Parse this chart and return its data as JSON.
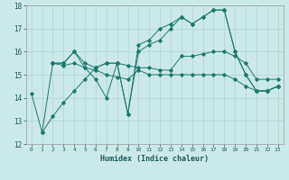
{
  "xlabel": "Humidex (Indice chaleur)",
  "ylabel": "",
  "xlim": [
    -0.5,
    23.5
  ],
  "ylim": [
    12,
    18
  ],
  "yticks": [
    12,
    13,
    14,
    15,
    16,
    17,
    18
  ],
  "xticks": [
    0,
    1,
    2,
    3,
    4,
    5,
    6,
    7,
    8,
    9,
    10,
    11,
    12,
    13,
    14,
    15,
    16,
    17,
    18,
    19,
    20,
    21,
    22,
    23
  ],
  "background_color": "#cce9e9",
  "grid_color": "#aad4d4",
  "line_color": "#1a7a6e",
  "series": [
    {
      "x": [
        0,
        1,
        2,
        3,
        4,
        5,
        6,
        7,
        8,
        9,
        10,
        11,
        12,
        13,
        14,
        15,
        16,
        17,
        18,
        19,
        20,
        21,
        22,
        23
      ],
      "y": [
        14.2,
        12.5,
        15.5,
        15.5,
        16.0,
        15.3,
        14.8,
        14.0,
        15.5,
        13.3,
        16.3,
        16.5,
        17.0,
        17.2,
        17.5,
        17.2,
        17.5,
        17.8,
        17.8,
        16.0,
        15.0,
        14.3,
        14.3,
        14.5
      ]
    },
    {
      "x": [
        2,
        3,
        4,
        5,
        6,
        7,
        8,
        9,
        10,
        11,
        12,
        13,
        14,
        15,
        16,
        17,
        18,
        19,
        20,
        21,
        22,
        23
      ],
      "y": [
        15.5,
        15.5,
        16.0,
        15.5,
        15.3,
        15.5,
        15.5,
        15.4,
        15.3,
        15.3,
        15.2,
        15.2,
        15.8,
        15.8,
        15.9,
        16.0,
        16.0,
        15.8,
        15.5,
        14.8,
        14.8,
        14.8
      ]
    },
    {
      "x": [
        2,
        3,
        4,
        5,
        6,
        7,
        8,
        9,
        10,
        11,
        12,
        13,
        14,
        15,
        16,
        17,
        18,
        19,
        20,
        21,
        22,
        23
      ],
      "y": [
        15.5,
        15.4,
        15.5,
        15.3,
        15.2,
        15.0,
        14.9,
        14.8,
        15.2,
        15.0,
        15.0,
        15.0,
        15.0,
        15.0,
        15.0,
        15.0,
        15.0,
        14.8,
        14.5,
        14.3,
        14.3,
        14.5
      ]
    },
    {
      "x": [
        1,
        2,
        3,
        4,
        5,
        6,
        7,
        8,
        9,
        10,
        11,
        12,
        13,
        14,
        15,
        16,
        17,
        18,
        19,
        20,
        21,
        22,
        23
      ],
      "y": [
        12.5,
        13.2,
        13.8,
        14.3,
        14.8,
        15.3,
        15.5,
        15.5,
        13.3,
        16.0,
        16.3,
        16.5,
        17.0,
        17.5,
        17.2,
        17.5,
        17.8,
        17.8,
        16.0,
        15.0,
        14.3,
        14.3,
        14.5
      ]
    }
  ]
}
